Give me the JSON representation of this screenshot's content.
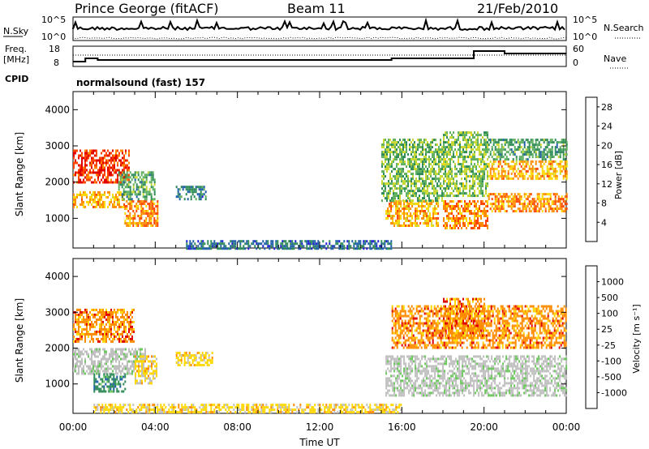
{
  "header": {
    "station": "Prince George (fitACF)",
    "beam": "Beam 11",
    "date": "21/Feb/2010"
  },
  "top_panels": {
    "nsky_label": "N.Sky",
    "nsearch_label": "N.Search",
    "nsky_ticks": [
      "10^5",
      "10^0"
    ],
    "nsearch_ticks": [
      "10^5",
      "10^0"
    ],
    "freq_label": "Freq.",
    "freq_unit": "[MHz]",
    "freq_ticks": [
      "18",
      "8"
    ],
    "nave_label": "Nave",
    "nave_ticks": [
      "60",
      "0"
    ],
    "cpid_label": "CPID",
    "cpid_value": "normalsound (fast) 157"
  },
  "colors": {
    "power_scale": [
      "#1f1fd6",
      "#1f5fa8",
      "#2e8b57",
      "#5fb05f",
      "#c8d830",
      "#ffd700",
      "#ff8c00",
      "#ff4500",
      "#e00000"
    ],
    "velocity_scale": [
      "#1f2fd6",
      "#1f5fa8",
      "#2e8b57",
      "#6cc85c",
      "#c0c0c0",
      "#c0c0c0",
      "#ffd700",
      "#ff8c00",
      "#e00000"
    ]
  },
  "chart_data": [
    {
      "type": "heatmap",
      "title": "",
      "xlabel": "",
      "ylabel": "Slant Range [km]",
      "xlim": [
        "00:00",
        "00:00"
      ],
      "ylim": [
        180,
        4500
      ],
      "x_ticks": [
        "00:00",
        "04:00",
        "08:00",
        "12:00",
        "16:00",
        "20:00",
        "00:00"
      ],
      "y_ticks": [
        1000,
        2000,
        3000,
        4000
      ],
      "colorbar": {
        "label": "Power [dB]",
        "ticks": [
          4,
          8,
          12,
          16,
          20,
          24,
          28
        ],
        "range": [
          0,
          30
        ]
      },
      "regions": [
        {
          "start_h": 0.0,
          "end_h": 2.7,
          "range_min": 2000,
          "range_max": 2900,
          "value": 26
        },
        {
          "start_h": 0.0,
          "end_h": 2.5,
          "range_min": 1300,
          "range_max": 1750,
          "value": 20
        },
        {
          "start_h": 2.5,
          "end_h": 4.1,
          "range_min": 800,
          "range_max": 1500,
          "value": 22
        },
        {
          "start_h": 2.2,
          "end_h": 4.0,
          "range_min": 1500,
          "range_max": 2300,
          "value": 10
        },
        {
          "start_h": 5.0,
          "end_h": 6.5,
          "range_min": 1500,
          "range_max": 1900,
          "value": 7
        },
        {
          "start_h": 15.2,
          "end_h": 17.8,
          "range_min": 800,
          "range_max": 1500,
          "value": 20
        },
        {
          "start_h": 15.0,
          "end_h": 18.0,
          "range_min": 1500,
          "range_max": 3200,
          "value": 12
        },
        {
          "start_h": 18.0,
          "end_h": 20.2,
          "range_min": 700,
          "range_max": 1500,
          "value": 22
        },
        {
          "start_h": 18.0,
          "end_h": 20.2,
          "range_min": 1600,
          "range_max": 3400,
          "value": 13
        },
        {
          "start_h": 20.2,
          "end_h": 24.0,
          "range_min": 1200,
          "range_max": 1700,
          "value": 22
        },
        {
          "start_h": 20.2,
          "end_h": 24.0,
          "range_min": 2100,
          "range_max": 2600,
          "value": 20
        },
        {
          "start_h": 20.2,
          "end_h": 24.0,
          "range_min": 2600,
          "range_max": 3200,
          "value": 10
        },
        {
          "start_h": 5.5,
          "end_h": 15.5,
          "range_min": 180,
          "range_max": 400,
          "value": 6
        }
      ]
    },
    {
      "type": "heatmap",
      "title": "",
      "xlabel": "Time UT",
      "ylabel": "Slant Range [km]",
      "xlim": [
        "00:00",
        "00:00"
      ],
      "ylim": [
        180,
        4500
      ],
      "x_ticks": [
        "00:00",
        "04:00",
        "08:00",
        "12:00",
        "16:00",
        "20:00",
        "00:00"
      ],
      "y_ticks": [
        1000,
        2000,
        3000,
        4000
      ],
      "colorbar": {
        "label": "Velocity [m s⁻¹]",
        "ticks": [
          "1000",
          "500",
          "100",
          "25",
          "-25",
          "-100",
          "-500",
          "-1000"
        ]
      },
      "regions": [
        {
          "start_h": 0.0,
          "end_h": 3.0,
          "range_min": 2200,
          "range_max": 3100,
          "value": "-500"
        },
        {
          "start_h": 0.0,
          "end_h": 3.5,
          "range_min": 1300,
          "range_max": 2000,
          "value": "0"
        },
        {
          "start_h": 1.0,
          "end_h": 2.5,
          "range_min": 800,
          "range_max": 1300,
          "value": "100"
        },
        {
          "start_h": 3.0,
          "end_h": 4.1,
          "range_min": 1000,
          "range_max": 1800,
          "value": "-100"
        },
        {
          "start_h": 5.0,
          "end_h": 6.8,
          "range_min": 1500,
          "range_max": 1900,
          "value": "-100"
        },
        {
          "start_h": 15.2,
          "end_h": 24.0,
          "range_min": 700,
          "range_max": 1800,
          "value": "0"
        },
        {
          "start_h": 15.5,
          "end_h": 24.0,
          "range_min": 2000,
          "range_max": 3200,
          "value": "-500"
        },
        {
          "start_h": 18.0,
          "end_h": 20.0,
          "range_min": 2300,
          "range_max": 3400,
          "value": "-500"
        },
        {
          "start_h": 1.0,
          "end_h": 16.0,
          "range_min": 180,
          "range_max": 450,
          "value": "-100"
        }
      ]
    }
  ]
}
